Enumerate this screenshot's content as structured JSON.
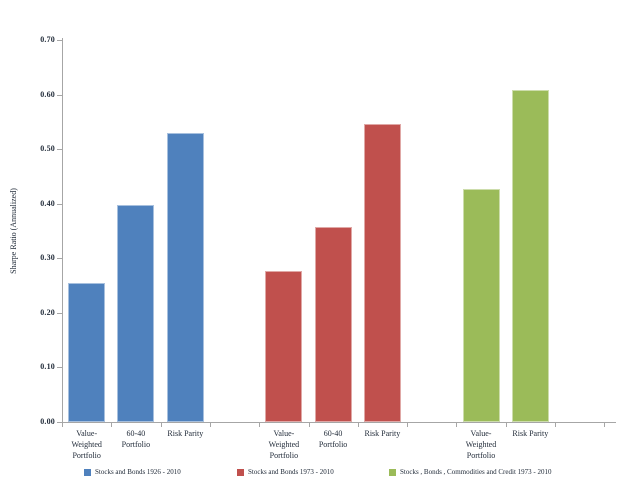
{
  "chart_data": {
    "type": "bar",
    "title": "",
    "xlabel": "",
    "ylabel": "Sharpe Ratio (Annualized)",
    "ylim": [
      0,
      0.7
    ],
    "ytick_labels": [
      "0.00",
      "0.10",
      "0.20",
      "0.30",
      "0.40",
      "0.50",
      "0.60",
      "0.70"
    ],
    "grid": false,
    "legend_position": "bottom",
    "series": [
      {
        "name": "Stocks and Bonds 1926 - 2010",
        "color": "#4F81BD",
        "bars": [
          {
            "category": "Value-Weighted Portfolio",
            "category_lines": [
              "Value-",
              "Weighted",
              "Portfolio"
            ],
            "value": 0.255
          },
          {
            "category": "60-40 Portfolio",
            "category_lines": [
              "60-40",
              "Portfolio"
            ],
            "value": 0.398
          },
          {
            "category": "Risk Parity",
            "category_lines": [
              "Risk Parity"
            ],
            "value": 0.53
          }
        ]
      },
      {
        "name": "Stocks and Bonds 1973 - 2010",
        "color": "#C0504D",
        "bars": [
          {
            "category": "Value-Weighted Portfolio",
            "category_lines": [
              "Value-",
              "Weighted",
              "Portfolio"
            ],
            "value": 0.276
          },
          {
            "category": "60-40 Portfolio",
            "category_lines": [
              "60-40",
              "Portfolio"
            ],
            "value": 0.358
          },
          {
            "category": "Risk Parity",
            "category_lines": [
              "Risk Parity"
            ],
            "value": 0.546
          }
        ]
      },
      {
        "name": "Stocks , Bonds , Commodities and Credit 1973 - 2010",
        "color": "#9BBB59",
        "bars": [
          {
            "category": "Value-Weighted Portfolio",
            "category_lines": [
              "Value-",
              "Weighted",
              "Portfolio"
            ],
            "value": 0.427
          },
          {
            "category": "Risk Parity",
            "category_lines": [
              "Risk Parity"
            ],
            "value": 0.609
          }
        ]
      }
    ]
  }
}
